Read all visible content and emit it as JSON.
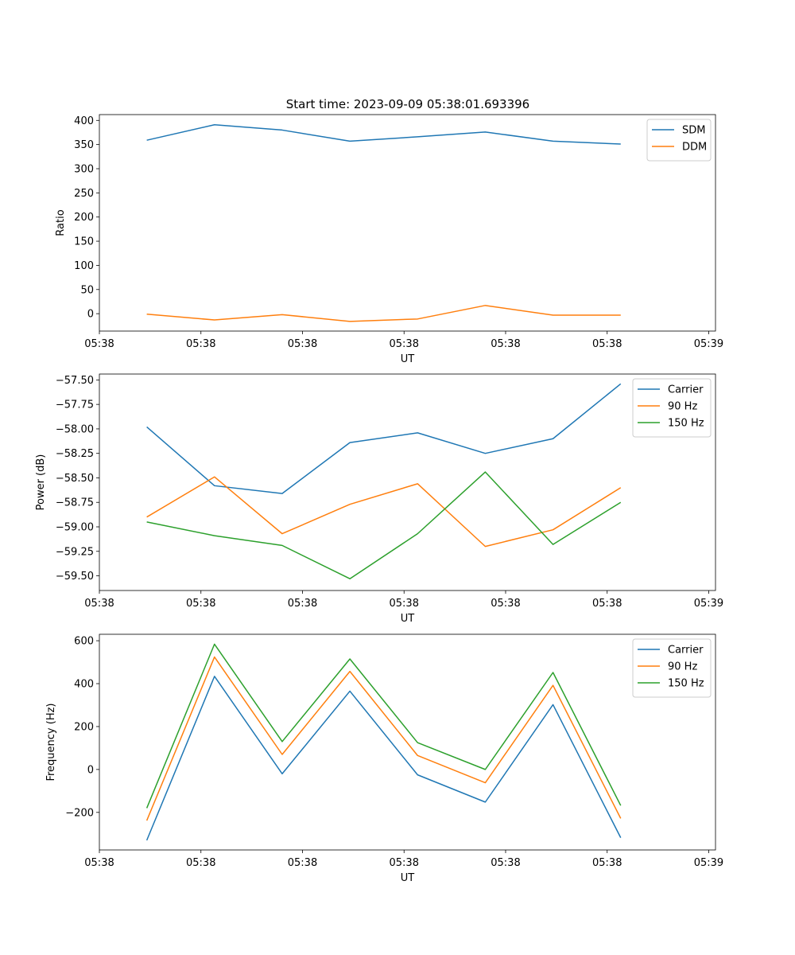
{
  "figure": {
    "title": "Start time: 2023-09-09 05:38:01.693396"
  },
  "chart_data": [
    {
      "type": "line",
      "title": "Start time: 2023-09-09 05:38:01.693396",
      "xlabel": "UT",
      "ylabel": "Ratio",
      "xlim": [
        -0.7,
        8.4
      ],
      "ylim": [
        -36,
        412
      ],
      "x": [
        0,
        1,
        2,
        3,
        4,
        5,
        6,
        7
      ],
      "xticks": [
        -0.7,
        0.8,
        2.3,
        3.8,
        5.3,
        6.8,
        8.3
      ],
      "xtick_labels": [
        "05:38",
        "05:38",
        "05:38",
        "05:38",
        "05:38",
        "05:38",
        "05:39"
      ],
      "yticks": [
        0,
        50,
        100,
        150,
        200,
        250,
        300,
        350,
        400
      ],
      "ytick_labels": [
        "0",
        "50",
        "100",
        "150",
        "200",
        "250",
        "300",
        "350",
        "400"
      ],
      "legend": "top-right",
      "series": [
        {
          "name": "SDM",
          "color": "#1f77b4",
          "values": [
            359,
            391,
            380,
            357,
            366,
            376,
            357,
            351
          ]
        },
        {
          "name": "DDM",
          "color": "#ff7f0e",
          "values": [
            -1,
            -13,
            -2,
            -16,
            -11,
            17,
            -3,
            -3
          ]
        }
      ]
    },
    {
      "type": "line",
      "xlabel": "UT",
      "ylabel": "Power (dB)",
      "xlim": [
        -0.7,
        8.4
      ],
      "ylim": [
        -59.65,
        -57.44
      ],
      "x": [
        0,
        1,
        2,
        3,
        4,
        5,
        6,
        7
      ],
      "xticks": [
        -0.7,
        0.8,
        2.3,
        3.8,
        5.3,
        6.8,
        8.3
      ],
      "xtick_labels": [
        "05:38",
        "05:38",
        "05:38",
        "05:38",
        "05:38",
        "05:38",
        "05:39"
      ],
      "yticks": [
        -59.5,
        -59.25,
        -59.0,
        -58.75,
        -58.5,
        -58.25,
        -58.0,
        -57.75,
        -57.5
      ],
      "ytick_labels": [
        "−59.50",
        "−59.25",
        "−59.00",
        "−58.75",
        "−58.50",
        "−58.25",
        "−58.00",
        "−57.75",
        "−57.50"
      ],
      "legend": "top-right",
      "series": [
        {
          "name": "Carrier",
          "color": "#1f77b4",
          "values": [
            -57.98,
            -58.58,
            -58.66,
            -58.14,
            -58.04,
            -58.25,
            -58.1,
            -57.54
          ]
        },
        {
          "name": "90 Hz",
          "color": "#ff7f0e",
          "values": [
            -58.9,
            -58.49,
            -59.07,
            -58.77,
            -58.56,
            -59.2,
            -59.03,
            -58.6
          ]
        },
        {
          "name": "150 Hz",
          "color": "#2ca02c",
          "values": [
            -58.95,
            -59.09,
            -59.19,
            -59.53,
            -59.07,
            -58.44,
            -59.18,
            -58.75
          ]
        }
      ]
    },
    {
      "type": "line",
      "xlabel": "UT",
      "ylabel": "Frequency (Hz)",
      "xlim": [
        -0.7,
        8.4
      ],
      "ylim": [
        -375,
        630
      ],
      "x": [
        0,
        1,
        2,
        3,
        4,
        5,
        6,
        7
      ],
      "xticks": [
        -0.7,
        0.8,
        2.3,
        3.8,
        5.3,
        6.8,
        8.3
      ],
      "xtick_labels": [
        "05:38",
        "05:38",
        "05:38",
        "05:38",
        "05:38",
        "05:38",
        "05:39"
      ],
      "yticks": [
        -200,
        0,
        200,
        400,
        600
      ],
      "ytick_labels": [
        "−200",
        "0",
        "200",
        "400",
        "600"
      ],
      "legend": "top-right",
      "series": [
        {
          "name": "Carrier",
          "color": "#1f77b4",
          "values": [
            -330,
            434,
            -20,
            365,
            -25,
            -152,
            302,
            -318
          ]
        },
        {
          "name": "90 Hz",
          "color": "#ff7f0e",
          "values": [
            -238,
            524,
            70,
            457,
            65,
            -62,
            392,
            -228
          ]
        },
        {
          "name": "150 Hz",
          "color": "#2ca02c",
          "values": [
            -180,
            584,
            130,
            515,
            125,
            0,
            452,
            -168
          ]
        }
      ]
    }
  ]
}
